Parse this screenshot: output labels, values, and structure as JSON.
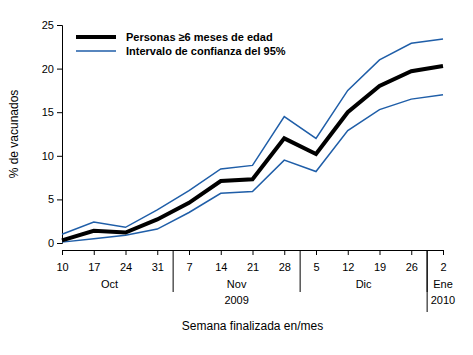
{
  "chart_data": {
    "type": "line",
    "x_label": "Semana finalizada en/mes",
    "y_label": "% de vacunados",
    "categories": [
      "10",
      "17",
      "24",
      "31",
      "7",
      "14",
      "21",
      "28",
      "5",
      "12",
      "19",
      "26",
      "2"
    ],
    "months": [
      "Oct",
      "Oct",
      "Oct",
      "Oct",
      "Nov",
      "Nov",
      "Nov",
      "Nov",
      "Dic",
      "Dic",
      "Dic",
      "Dic",
      "Ene"
    ],
    "years": [
      "2009",
      "2009",
      "2009",
      "2009",
      "2009",
      "2009",
      "2009",
      "2009",
      "2009",
      "2009",
      "2009",
      "2009",
      "2010"
    ],
    "series": [
      {
        "name": "Personas ≥6 meses de edad",
        "color": "#000000",
        "values": [
          0.3,
          1.4,
          1.2,
          2.7,
          4.6,
          7.1,
          7.3,
          12.0,
          10.2,
          15.0,
          18.0,
          19.7,
          20.3
        ]
      },
      {
        "name": "Intervalo de confianza del 95%",
        "color": "#1f5ea8",
        "lower": [
          0.1,
          0.5,
          0.9,
          1.6,
          3.5,
          5.7,
          5.9,
          9.5,
          8.2,
          12.9,
          15.3,
          16.5,
          17.0
        ],
        "upper": [
          1.0,
          2.4,
          1.8,
          3.8,
          6.0,
          8.5,
          8.9,
          14.5,
          12.0,
          17.5,
          21.0,
          22.9,
          23.4
        ]
      }
    ],
    "ylim": [
      0,
      25
    ],
    "yticks": [
      0,
      5,
      10,
      15,
      20,
      25
    ],
    "legend": "top-left",
    "grid": false
  }
}
